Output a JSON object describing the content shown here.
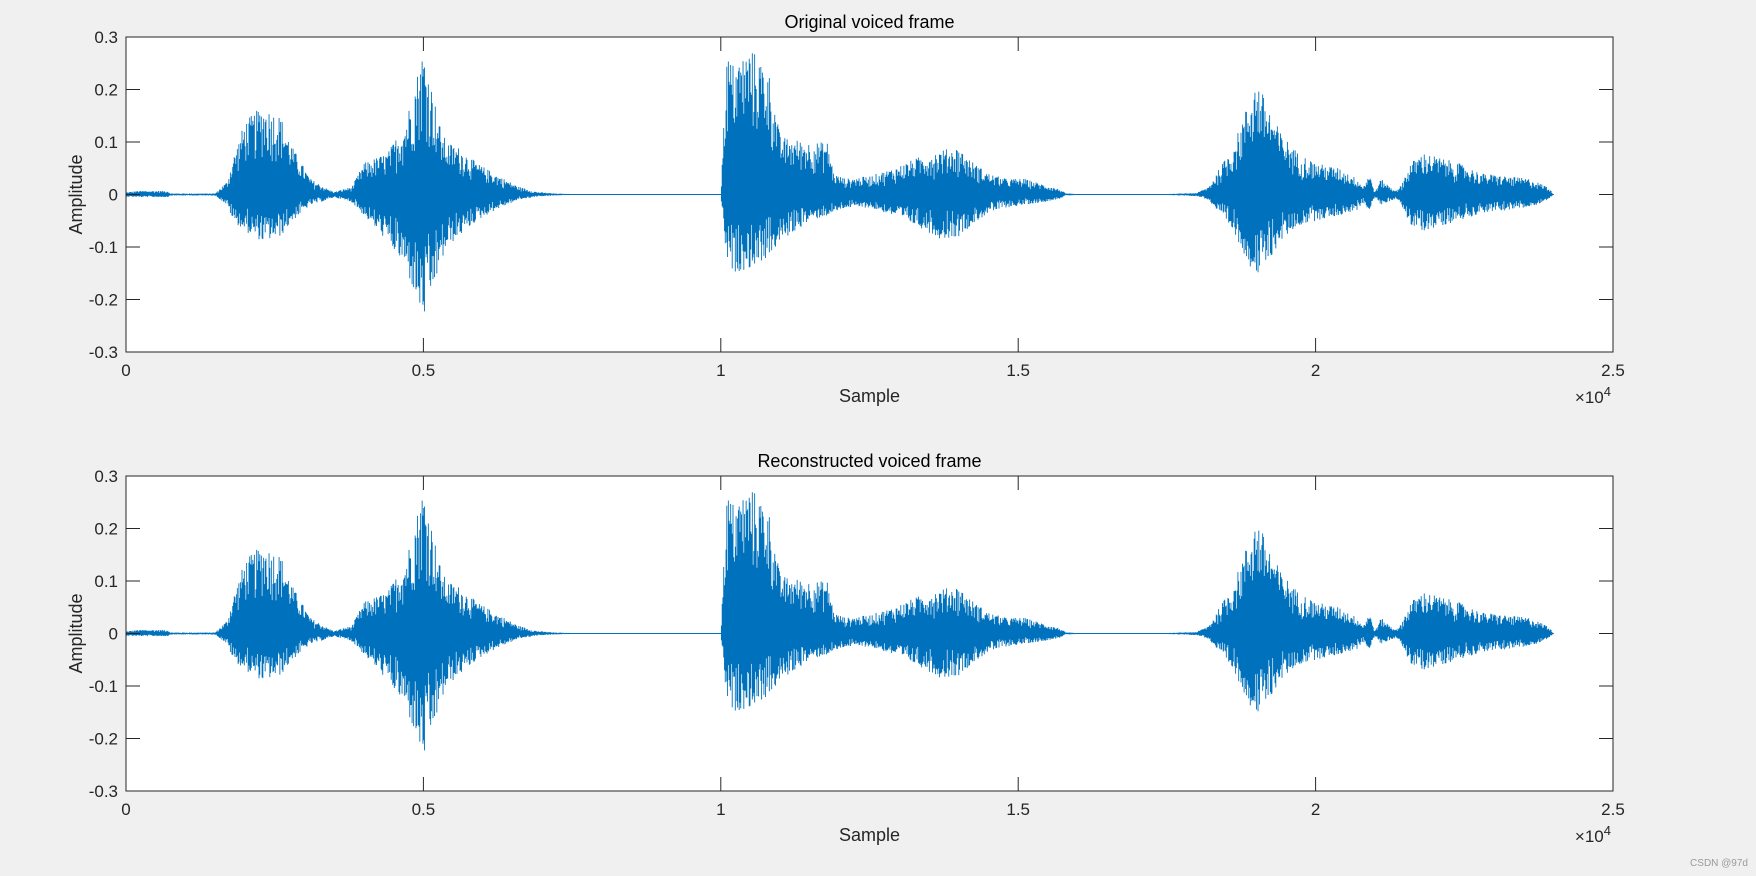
{
  "figure": {
    "background_color": "#f0f0f0",
    "axes_color": "#ffffff",
    "line_color": "#0072bd",
    "watermark": "CSDN @97d"
  },
  "chart_data": [
    {
      "type": "line",
      "title": "Original voiced frame",
      "xlabel": "Sample",
      "ylabel": "Amplitude",
      "xlim": [
        0,
        25000
      ],
      "ylim": [
        -0.3,
        0.3
      ],
      "x_ticks": [
        0,
        5000,
        10000,
        15000,
        20000,
        25000
      ],
      "x_tick_labels": [
        "0",
        "0.5",
        "1",
        "1.5",
        "2",
        "2.5"
      ],
      "x_exponent_label": "×10",
      "x_exponent": "4",
      "y_ticks": [
        -0.3,
        -0.2,
        -0.1,
        0,
        0.1,
        0.2,
        0.3
      ],
      "y_tick_labels": [
        "-0.3",
        "-0.2",
        "-0.1",
        "0",
        "0.1",
        "0.2",
        "0.3"
      ],
      "grid": false,
      "signal_length": 24000,
      "envelope": {
        "x": [
          0,
          200,
          700,
          750,
          1500,
          1700,
          1800,
          2000,
          2300,
          2600,
          2800,
          3100,
          3400,
          3500,
          3800,
          4000,
          4400,
          4700,
          5000,
          5300,
          5400,
          5600,
          5900,
          6200,
          6600,
          6900,
          7200,
          7500,
          8000,
          9000,
          10000,
          10100,
          10200,
          10500,
          10800,
          11000,
          11500,
          11800,
          11900,
          12100,
          12500,
          12900,
          13300,
          13700,
          14000,
          14200,
          14500,
          14800,
          15100,
          15400,
          15700,
          15800,
          16000,
          17500,
          18000,
          18200,
          18600,
          18700,
          19000,
          19200,
          19400,
          19700,
          20000,
          20400,
          20700,
          20800,
          20900,
          21000,
          21100,
          21300,
          21400,
          21600,
          21800,
          22100,
          22400,
          22800,
          23200,
          23600,
          23900,
          24000
        ],
        "pos": [
          0.004,
          0.007,
          0.007,
          0.002,
          0.002,
          0.025,
          0.07,
          0.14,
          0.17,
          0.15,
          0.09,
          0.03,
          0.01,
          0.005,
          0.015,
          0.06,
          0.08,
          0.14,
          0.28,
          0.12,
          0.1,
          0.09,
          0.06,
          0.04,
          0.015,
          0.005,
          0.002,
          0.001,
          0.001,
          0.001,
          0.001,
          0.27,
          0.25,
          0.28,
          0.24,
          0.11,
          0.1,
          0.1,
          0.04,
          0.03,
          0.035,
          0.05,
          0.07,
          0.085,
          0.09,
          0.065,
          0.04,
          0.03,
          0.03,
          0.02,
          0.01,
          0.002,
          0.001,
          0.001,
          0.003,
          0.015,
          0.09,
          0.12,
          0.22,
          0.17,
          0.12,
          0.08,
          0.06,
          0.05,
          0.03,
          0.015,
          0.04,
          0.005,
          0.03,
          0.01,
          0.01,
          0.06,
          0.08,
          0.07,
          0.06,
          0.04,
          0.035,
          0.03,
          0.015,
          0.001
        ],
        "neg": [
          0.004,
          0.005,
          0.005,
          0.002,
          0.002,
          0.02,
          0.05,
          0.07,
          0.09,
          0.08,
          0.05,
          0.02,
          0.01,
          0.005,
          0.015,
          0.04,
          0.09,
          0.14,
          0.24,
          0.13,
          0.1,
          0.08,
          0.05,
          0.03,
          0.01,
          0.004,
          0.002,
          0.001,
          0.001,
          0.001,
          0.001,
          0.13,
          0.15,
          0.14,
          0.12,
          0.09,
          0.05,
          0.04,
          0.035,
          0.025,
          0.025,
          0.04,
          0.06,
          0.085,
          0.08,
          0.06,
          0.035,
          0.025,
          0.02,
          0.015,
          0.008,
          0.002,
          0.001,
          0.001,
          0.003,
          0.01,
          0.07,
          0.09,
          0.16,
          0.13,
          0.09,
          0.06,
          0.05,
          0.04,
          0.03,
          0.015,
          0.03,
          0.005,
          0.02,
          0.01,
          0.01,
          0.06,
          0.07,
          0.06,
          0.05,
          0.035,
          0.03,
          0.025,
          0.01,
          0.001
        ]
      }
    },
    {
      "type": "line",
      "title": "Reconstructed voiced frame",
      "xlabel": "Sample",
      "ylabel": "Amplitude",
      "xlim": [
        0,
        25000
      ],
      "ylim": [
        -0.3,
        0.3
      ],
      "x_ticks": [
        0,
        5000,
        10000,
        15000,
        20000,
        25000
      ],
      "x_tick_labels": [
        "0",
        "0.5",
        "1",
        "1.5",
        "2",
        "2.5"
      ],
      "x_exponent_label": "×10",
      "x_exponent": "4",
      "y_ticks": [
        -0.3,
        -0.2,
        -0.1,
        0,
        0.1,
        0.2,
        0.3
      ],
      "y_tick_labels": [
        "-0.3",
        "-0.2",
        "-0.1",
        "0",
        "0.1",
        "0.2",
        "0.3"
      ],
      "grid": false,
      "signal_length": 24000,
      "envelope": {
        "x": [
          0,
          200,
          700,
          750,
          1500,
          1700,
          1800,
          2000,
          2300,
          2600,
          2800,
          3100,
          3400,
          3500,
          3800,
          4000,
          4400,
          4700,
          5000,
          5300,
          5400,
          5600,
          5900,
          6200,
          6600,
          6900,
          7200,
          7500,
          8000,
          9000,
          10000,
          10100,
          10200,
          10500,
          10800,
          11000,
          11500,
          11800,
          11900,
          12100,
          12500,
          12900,
          13300,
          13700,
          14000,
          14200,
          14500,
          14800,
          15100,
          15400,
          15700,
          15800,
          16000,
          17500,
          18000,
          18200,
          18600,
          18700,
          19000,
          19200,
          19400,
          19700,
          20000,
          20400,
          20700,
          20800,
          20900,
          21000,
          21100,
          21300,
          21400,
          21600,
          21800,
          22100,
          22400,
          22800,
          23200,
          23600,
          23900,
          24000
        ],
        "pos": [
          0.004,
          0.007,
          0.007,
          0.002,
          0.002,
          0.025,
          0.07,
          0.14,
          0.17,
          0.15,
          0.09,
          0.03,
          0.01,
          0.005,
          0.015,
          0.06,
          0.08,
          0.14,
          0.28,
          0.12,
          0.1,
          0.09,
          0.06,
          0.04,
          0.015,
          0.005,
          0.002,
          0.001,
          0.001,
          0.001,
          0.001,
          0.27,
          0.25,
          0.28,
          0.24,
          0.11,
          0.1,
          0.1,
          0.04,
          0.03,
          0.035,
          0.05,
          0.07,
          0.085,
          0.09,
          0.065,
          0.04,
          0.03,
          0.03,
          0.02,
          0.01,
          0.002,
          0.001,
          0.001,
          0.003,
          0.015,
          0.09,
          0.12,
          0.22,
          0.17,
          0.12,
          0.08,
          0.06,
          0.05,
          0.03,
          0.015,
          0.04,
          0.005,
          0.03,
          0.01,
          0.01,
          0.06,
          0.08,
          0.07,
          0.06,
          0.04,
          0.035,
          0.03,
          0.015,
          0.001
        ],
        "neg": [
          0.004,
          0.005,
          0.005,
          0.002,
          0.002,
          0.02,
          0.05,
          0.07,
          0.09,
          0.08,
          0.05,
          0.02,
          0.01,
          0.005,
          0.015,
          0.04,
          0.09,
          0.14,
          0.24,
          0.13,
          0.1,
          0.08,
          0.05,
          0.03,
          0.01,
          0.004,
          0.002,
          0.001,
          0.001,
          0.001,
          0.001,
          0.13,
          0.15,
          0.14,
          0.12,
          0.09,
          0.05,
          0.04,
          0.035,
          0.025,
          0.025,
          0.04,
          0.06,
          0.085,
          0.08,
          0.06,
          0.035,
          0.025,
          0.02,
          0.015,
          0.008,
          0.002,
          0.001,
          0.001,
          0.003,
          0.01,
          0.07,
          0.09,
          0.16,
          0.13,
          0.09,
          0.06,
          0.05,
          0.04,
          0.03,
          0.015,
          0.03,
          0.005,
          0.02,
          0.01,
          0.01,
          0.06,
          0.07,
          0.06,
          0.05,
          0.035,
          0.03,
          0.025,
          0.01,
          0.001
        ]
      }
    }
  ]
}
